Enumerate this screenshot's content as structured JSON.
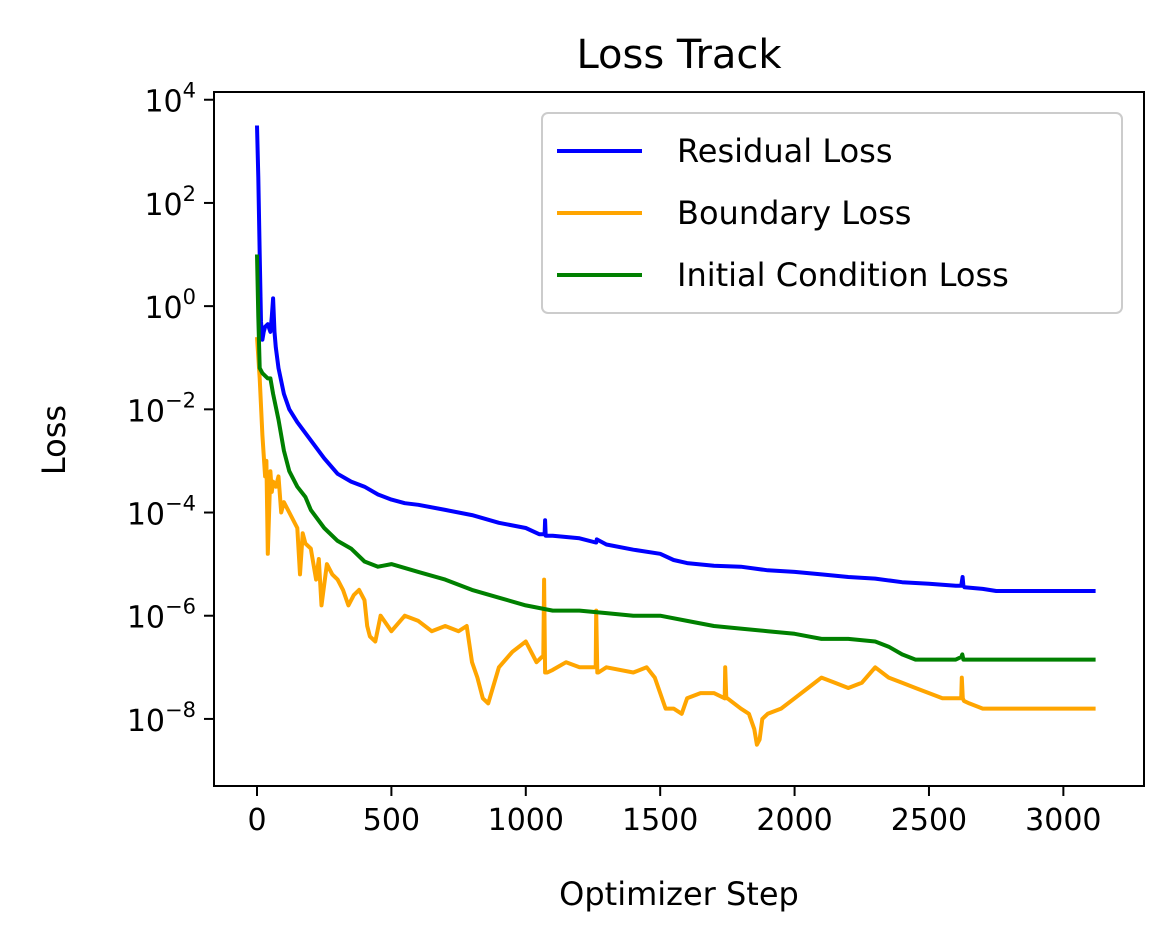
{
  "chart_data": {
    "type": "line",
    "title": "Loss Track",
    "xlabel": "Optimizer Step",
    "ylabel": "Loss",
    "xlim": [
      -160,
      3300
    ],
    "ylim_log10": [
      -9.3,
      4.15
    ],
    "yscale": "log",
    "x_ticks": [
      0,
      500,
      1000,
      1500,
      2000,
      2500,
      3000
    ],
    "x_tick_labels": [
      "0",
      "500",
      "1000",
      "1500",
      "2000",
      "2500",
      "3000"
    ],
    "y_ticks": [
      {
        "base": "10",
        "exp": "4",
        "value": 4
      },
      {
        "base": "10",
        "exp": "2",
        "value": 2
      },
      {
        "base": "10",
        "exp": "0",
        "value": 0
      },
      {
        "base": "10",
        "exp": "−2",
        "value": -2
      },
      {
        "base": "10",
        "exp": "−4",
        "value": -4
      },
      {
        "base": "10",
        "exp": "−6",
        "value": -6
      },
      {
        "base": "10",
        "exp": "−8",
        "value": -8
      }
    ],
    "legend_position": "upper-right",
    "series": [
      {
        "name": "Residual Loss",
        "color": "#0000ff",
        "x": [
          0,
          5,
          10,
          15,
          20,
          25,
          30,
          40,
          50,
          55,
          60,
          65,
          70,
          80,
          100,
          120,
          150,
          200,
          250,
          300,
          350,
          400,
          450,
          500,
          550,
          600,
          700,
          800,
          900,
          1000,
          1050,
          1070,
          1072,
          1074,
          1090,
          1100,
          1200,
          1260,
          1262,
          1264,
          1300,
          1400,
          1500,
          1550,
          1600,
          1700,
          1800,
          1900,
          2000,
          2100,
          2200,
          2300,
          2400,
          2500,
          2600,
          2620,
          2625,
          2628,
          2632,
          2700,
          2750,
          3000,
          3120
        ],
        "y_log10": [
          3.5,
          2.5,
          1.0,
          -0.3,
          -0.65,
          -0.5,
          -0.4,
          -0.35,
          -0.5,
          -0.2,
          0.15,
          -0.5,
          -0.8,
          -1.2,
          -1.7,
          -2.0,
          -2.25,
          -2.6,
          -2.95,
          -3.25,
          -3.4,
          -3.5,
          -3.65,
          -3.75,
          -3.82,
          -3.85,
          -3.95,
          -4.05,
          -4.2,
          -4.3,
          -4.42,
          -4.42,
          -4.15,
          -4.45,
          -4.45,
          -4.45,
          -4.5,
          -4.58,
          -4.58,
          -4.52,
          -4.62,
          -4.72,
          -4.8,
          -4.92,
          -4.98,
          -5.03,
          -5.05,
          -5.12,
          -5.15,
          -5.2,
          -5.25,
          -5.28,
          -5.35,
          -5.38,
          -5.42,
          -5.42,
          -5.25,
          -5.42,
          -5.45,
          -5.48,
          -5.52,
          -5.52,
          -5.52
        ]
      },
      {
        "name": "Boundary Loss",
        "color": "#ffa500",
        "x": [
          0,
          10,
          20,
          30,
          35,
          40,
          50,
          55,
          60,
          70,
          80,
          90,
          100,
          120,
          150,
          160,
          170,
          180,
          200,
          220,
          230,
          240,
          260,
          280,
          300,
          320,
          340,
          360,
          380,
          400,
          410,
          420,
          440,
          460,
          500,
          550,
          600,
          650,
          700,
          750,
          780,
          800,
          820,
          840,
          860,
          900,
          950,
          1000,
          1040,
          1060,
          1065,
          1068,
          1072,
          1080,
          1100,
          1150,
          1200,
          1250,
          1260,
          1262,
          1266,
          1270,
          1300,
          1400,
          1450,
          1480,
          1500,
          1520,
          1550,
          1580,
          1600,
          1650,
          1700,
          1740,
          1742,
          1746,
          1750,
          1800,
          1830,
          1850,
          1860,
          1870,
          1880,
          1900,
          1950,
          2000,
          2050,
          2100,
          2150,
          2200,
          2250,
          2300,
          2350,
          2400,
          2450,
          2500,
          2550,
          2600,
          2620,
          2622,
          2626,
          2630,
          2650,
          2700,
          2750,
          3000,
          3120
        ],
        "y_log10": [
          -0.6,
          -1.4,
          -2.5,
          -3.3,
          -3.0,
          -4.8,
          -3.2,
          -3.6,
          -3.4,
          -3.5,
          -3.3,
          -4.0,
          -3.8,
          -4.0,
          -4.3,
          -5.2,
          -4.4,
          -4.6,
          -4.7,
          -5.3,
          -4.9,
          -5.8,
          -5.0,
          -5.2,
          -5.3,
          -5.5,
          -5.8,
          -5.6,
          -5.5,
          -5.7,
          -6.2,
          -6.4,
          -6.5,
          -6.0,
          -6.3,
          -6.0,
          -6.1,
          -6.3,
          -6.2,
          -6.3,
          -6.2,
          -6.9,
          -7.2,
          -7.6,
          -7.7,
          -7.0,
          -6.7,
          -6.5,
          -6.9,
          -6.8,
          -6.8,
          -5.3,
          -7.1,
          -7.1,
          -7.05,
          -6.9,
          -7.0,
          -7.0,
          -7.0,
          -5.9,
          -7.1,
          -7.1,
          -7.0,
          -7.1,
          -7.0,
          -7.2,
          -7.5,
          -7.8,
          -7.8,
          -7.9,
          -7.6,
          -7.5,
          -7.5,
          -7.6,
          -7.0,
          -7.6,
          -7.6,
          -7.8,
          -7.9,
          -8.2,
          -8.5,
          -8.4,
          -8.0,
          -7.9,
          -7.8,
          -7.6,
          -7.4,
          -7.2,
          -7.3,
          -7.4,
          -7.3,
          -7.0,
          -7.2,
          -7.3,
          -7.4,
          -7.5,
          -7.6,
          -7.6,
          -7.6,
          -7.2,
          -7.6,
          -7.65,
          -7.7,
          -7.8,
          -7.8,
          -7.8,
          -7.8
        ]
      },
      {
        "name": "Initial Condition Loss",
        "color": "#008000",
        "x": [
          0,
          5,
          10,
          20,
          30,
          40,
          50,
          60,
          80,
          100,
          120,
          150,
          180,
          200,
          250,
          300,
          350,
          400,
          450,
          500,
          600,
          700,
          800,
          900,
          1000,
          1100,
          1200,
          1300,
          1400,
          1500,
          1600,
          1700,
          1800,
          1900,
          2000,
          2100,
          2200,
          2300,
          2350,
          2400,
          2450,
          2500,
          2600,
          2620,
          2624,
          2628,
          2700,
          2750,
          3000,
          3120
        ],
        "y_log10": [
          1.0,
          -0.2,
          -1.2,
          -1.3,
          -1.35,
          -1.4,
          -1.4,
          -1.7,
          -2.2,
          -2.8,
          -3.2,
          -3.5,
          -3.7,
          -3.95,
          -4.3,
          -4.55,
          -4.7,
          -4.95,
          -5.05,
          -5.0,
          -5.15,
          -5.3,
          -5.5,
          -5.65,
          -5.8,
          -5.9,
          -5.9,
          -5.95,
          -6.0,
          -6.0,
          -6.1,
          -6.2,
          -6.25,
          -6.3,
          -6.35,
          -6.45,
          -6.45,
          -6.5,
          -6.6,
          -6.75,
          -6.85,
          -6.85,
          -6.85,
          -6.8,
          -6.75,
          -6.85,
          -6.85,
          -6.85,
          -6.85,
          -6.85
        ]
      }
    ]
  }
}
